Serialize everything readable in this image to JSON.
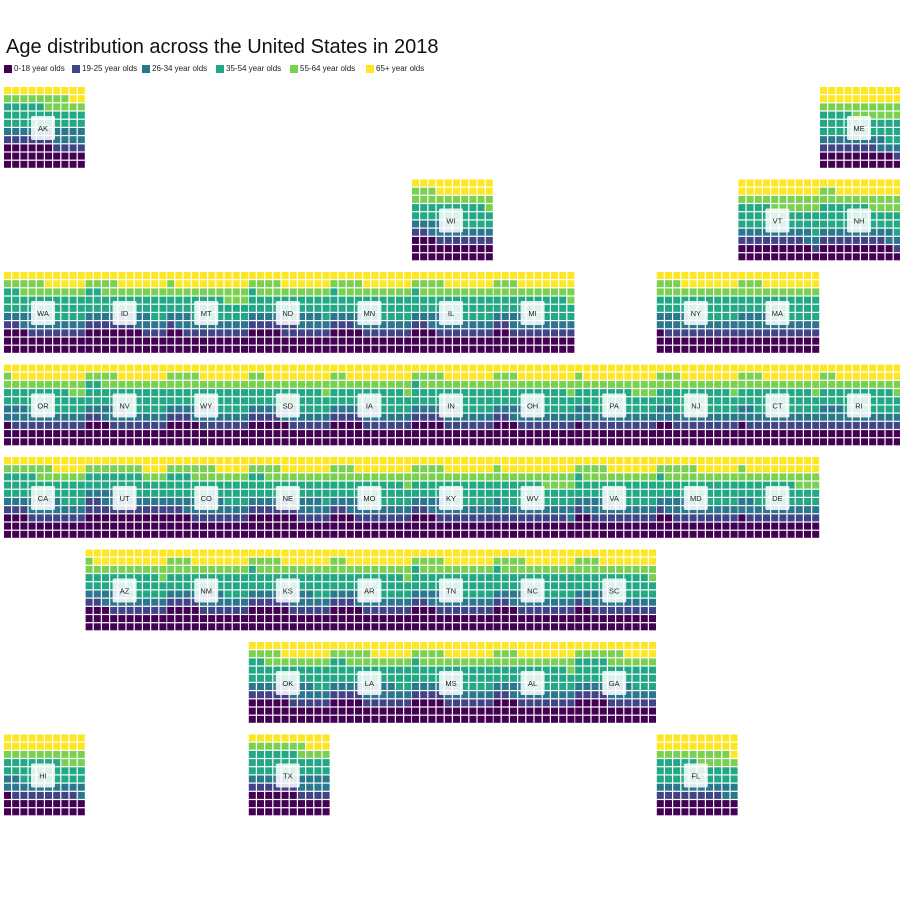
{
  "chart_data": {
    "type": "waffle-tile-map",
    "title": "Age distribution across the United States in 2018",
    "legend": {
      "placement": "top-left",
      "entries": [
        {
          "name": "0-18 year olds",
          "color": "#440154"
        },
        {
          "name": "19-25 year olds",
          "color": "#414487"
        },
        {
          "name": "26-34 year olds",
          "color": "#2a788e"
        },
        {
          "name": "35-54 year olds",
          "color": "#22a884"
        },
        {
          "name": "55-64 year olds",
          "color": "#7ad151"
        },
        {
          "name": "65+ year olds",
          "color": "#fde725"
        }
      ]
    },
    "units_per_tile": 100,
    "states": [
      {
        "abbr": "AK",
        "col": 0,
        "row": 0,
        "values": [
          26,
          10,
          14,
          25,
          13,
          12
        ]
      },
      {
        "abbr": "ME",
        "col": 10,
        "row": 0,
        "values": [
          19,
          8,
          11,
          26,
          16,
          20
        ]
      },
      {
        "abbr": "WI",
        "col": 5,
        "row": 1,
        "values": [
          23,
          9,
          12,
          25,
          14,
          17
        ]
      },
      {
        "abbr": "VT",
        "col": 9,
        "row": 1,
        "values": [
          19,
          9,
          11,
          25,
          16,
          20
        ]
      },
      {
        "abbr": "NH",
        "col": 10,
        "row": 1,
        "values": [
          19,
          9,
          11,
          27,
          16,
          18
        ]
      },
      {
        "abbr": "WA",
        "col": 0,
        "row": 2,
        "values": [
          23,
          9,
          14,
          26,
          13,
          15
        ]
      },
      {
        "abbr": "ID",
        "col": 1,
        "row": 2,
        "values": [
          27,
          9,
          12,
          24,
          12,
          16
        ]
      },
      {
        "abbr": "MT",
        "col": 2,
        "row": 2,
        "values": [
          22,
          9,
          12,
          24,
          14,
          19
        ]
      },
      {
        "abbr": "ND",
        "col": 3,
        "row": 2,
        "values": [
          24,
          12,
          13,
          22,
          13,
          16
        ]
      },
      {
        "abbr": "MN",
        "col": 4,
        "row": 2,
        "values": [
          24,
          9,
          13,
          25,
          13,
          16
        ]
      },
      {
        "abbr": "IL",
        "col": 5,
        "row": 2,
        "values": [
          23,
          9,
          13,
          26,
          13,
          16
        ]
      },
      {
        "abbr": "MI",
        "col": 6,
        "row": 2,
        "values": [
          22,
          10,
          12,
          25,
          14,
          17
        ]
      },
      {
        "abbr": "NY",
        "col": 8,
        "row": 2,
        "values": [
          21,
          9,
          14,
          26,
          13,
          17
        ]
      },
      {
        "abbr": "MA",
        "col": 9,
        "row": 2,
        "values": [
          20,
          10,
          14,
          26,
          13,
          17
        ]
      },
      {
        "abbr": "OR",
        "col": 0,
        "row": 3,
        "values": [
          21,
          9,
          13,
          25,
          13,
          19
        ]
      },
      {
        "abbr": "NV",
        "col": 1,
        "row": 3,
        "values": [
          23,
          9,
          13,
          27,
          12,
          16
        ]
      },
      {
        "abbr": "WY",
        "col": 2,
        "row": 3,
        "values": [
          24,
          9,
          13,
          24,
          14,
          16
        ]
      },
      {
        "abbr": "SD",
        "col": 3,
        "row": 3,
        "values": [
          25,
          9,
          12,
          23,
          13,
          18
        ]
      },
      {
        "abbr": "IA",
        "col": 4,
        "row": 3,
        "values": [
          24,
          10,
          12,
          23,
          13,
          18
        ]
      },
      {
        "abbr": "IN",
        "col": 5,
        "row": 3,
        "values": [
          24,
          10,
          12,
          25,
          13,
          16
        ]
      },
      {
        "abbr": "OH",
        "col": 6,
        "row": 3,
        "values": [
          23,
          9,
          12,
          25,
          14,
          17
        ]
      },
      {
        "abbr": "PA",
        "col": 7,
        "row": 3,
        "values": [
          21,
          9,
          12,
          25,
          14,
          19
        ]
      },
      {
        "abbr": "NJ",
        "col": 8,
        "row": 3,
        "values": [
          22,
          8,
          12,
          27,
          14,
          17
        ]
      },
      {
        "abbr": "CT",
        "col": 9,
        "row": 3,
        "values": [
          21,
          9,
          12,
          27,
          14,
          17
        ]
      },
      {
        "abbr": "RI",
        "col": 10,
        "row": 3,
        "values": [
          20,
          10,
          13,
          26,
          13,
          18
        ]
      },
      {
        "abbr": "CA",
        "col": 0,
        "row": 4,
        "values": [
          23,
          10,
          14,
          27,
          12,
          14
        ]
      },
      {
        "abbr": "UT",
        "col": 1,
        "row": 4,
        "values": [
          30,
          12,
          13,
          22,
          10,
          13
        ]
      },
      {
        "abbr": "CO",
        "col": 2,
        "row": 4,
        "values": [
          23,
          9,
          15,
          26,
          13,
          14
        ]
      },
      {
        "abbr": "NE",
        "col": 3,
        "row": 4,
        "values": [
          26,
          10,
          13,
          23,
          12,
          16
        ]
      },
      {
        "abbr": "MO",
        "col": 4,
        "row": 4,
        "values": [
          23,
          9,
          12,
          25,
          14,
          17
        ]
      },
      {
        "abbr": "KY",
        "col": 5,
        "row": 4,
        "values": [
          23,
          9,
          12,
          26,
          14,
          16
        ]
      },
      {
        "abbr": "WV",
        "col": 6,
        "row": 4,
        "values": [
          20,
          9,
          12,
          25,
          15,
          19
        ]
      },
      {
        "abbr": "VA",
        "col": 7,
        "row": 4,
        "values": [
          22,
          9,
          14,
          26,
          13,
          16
        ]
      },
      {
        "abbr": "MD",
        "col": 8,
        "row": 4,
        "values": [
          22,
          9,
          13,
          27,
          14,
          15
        ]
      },
      {
        "abbr": "DE",
        "col": 9,
        "row": 4,
        "values": [
          21,
          9,
          12,
          25,
          14,
          19
        ]
      },
      {
        "abbr": "AZ",
        "col": 1,
        "row": 5,
        "values": [
          23,
          9,
          13,
          24,
          12,
          19
        ]
      },
      {
        "abbr": "NM",
        "col": 2,
        "row": 5,
        "values": [
          24,
          10,
          13,
          23,
          13,
          17
        ]
      },
      {
        "abbr": "KS",
        "col": 3,
        "row": 5,
        "values": [
          25,
          10,
          13,
          23,
          13,
          16
        ]
      },
      {
        "abbr": "AR",
        "col": 4,
        "row": 5,
        "values": [
          24,
          9,
          12,
          24,
          13,
          18
        ]
      },
      {
        "abbr": "TN",
        "col": 5,
        "row": 5,
        "values": [
          23,
          9,
          13,
          26,
          13,
          16
        ]
      },
      {
        "abbr": "NC",
        "col": 6,
        "row": 5,
        "values": [
          23,
          9,
          13,
          26,
          13,
          16
        ]
      },
      {
        "abbr": "SC",
        "col": 7,
        "row": 5,
        "values": [
          22,
          9,
          13,
          25,
          14,
          17
        ]
      },
      {
        "abbr": "OK",
        "col": 3,
        "row": 6,
        "values": [
          25,
          10,
          13,
          24,
          12,
          16
        ]
      },
      {
        "abbr": "LA",
        "col": 4,
        "row": 6,
        "values": [
          24,
          10,
          14,
          24,
          13,
          15
        ]
      },
      {
        "abbr": "MS",
        "col": 5,
        "row": 6,
        "values": [
          24,
          10,
          12,
          25,
          13,
          16
        ]
      },
      {
        "abbr": "AL",
        "col": 6,
        "row": 6,
        "values": [
          23,
          9,
          12,
          25,
          14,
          17
        ]
      },
      {
        "abbr": "GA",
        "col": 7,
        "row": 6,
        "values": [
          24,
          10,
          13,
          27,
          12,
          14
        ]
      },
      {
        "abbr": "HI",
        "col": 0,
        "row": 7,
        "values": [
          21,
          8,
          13,
          25,
          13,
          20
        ]
      },
      {
        "abbr": "TX",
        "col": 3,
        "row": 7,
        "values": [
          26,
          10,
          14,
          26,
          11,
          13
        ]
      },
      {
        "abbr": "FL",
        "col": 8,
        "row": 7,
        "values": [
          20,
          8,
          12,
          25,
          14,
          21
        ]
      }
    ]
  }
}
